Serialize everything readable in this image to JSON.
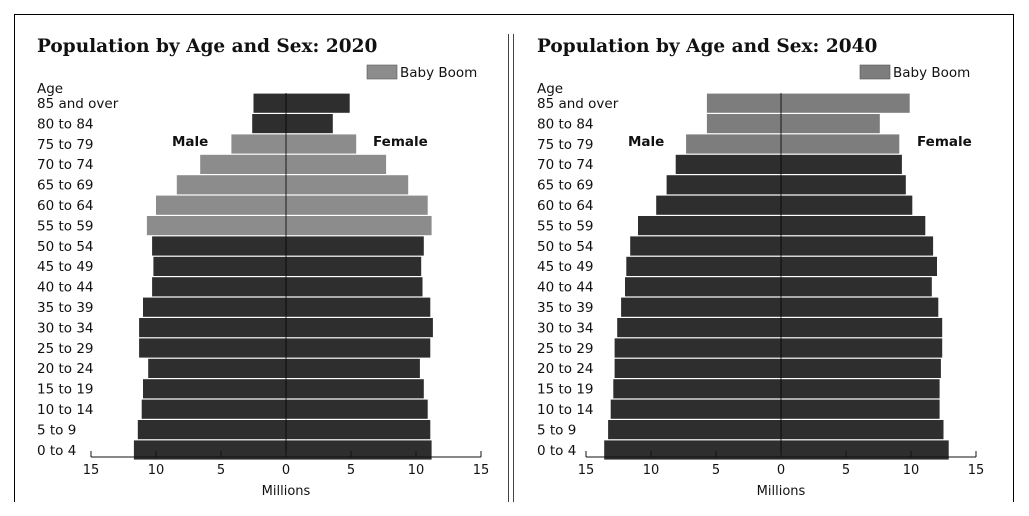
{
  "colors": {
    "cohort": "#2e2e2e",
    "baby_boom_2020": "#8c8c8c",
    "baby_boom_2040": "#7d7d7d",
    "axis": "#111111"
  },
  "chart_data": [
    {
      "type": "bar",
      "orientation": "horizontal-population-pyramid",
      "title": "Population by Age and Sex:  2020",
      "y_axis_title": "Age",
      "xlabel": "Millions",
      "xlim": [
        -15,
        15
      ],
      "tick_values": [
        -15,
        -10,
        -5,
        0,
        5,
        10,
        15
      ],
      "tick_labels": [
        "15",
        "10",
        "5",
        "0",
        "5",
        "10",
        "15"
      ],
      "legend": {
        "label": "Baby Boom",
        "position": "top-right"
      },
      "sex_labels": {
        "male": "Male",
        "female": "Female"
      },
      "categories": [
        "85 and over",
        "80 to 84",
        "75 to 79",
        "70 to 74",
        "65 to 69",
        "60 to 64",
        "55 to 59",
        "50 to 54",
        "45 to 49",
        "40 to 44",
        "35 to 39",
        "30 to 34",
        "25 to 29",
        "20 to 24",
        "15 to 19",
        "10 to 14",
        "5 to 9",
        "0 to 4"
      ],
      "baby_boom_categories": [
        "75 to 79",
        "70 to 74",
        "65 to 69",
        "60 to 64",
        "55 to 59"
      ],
      "series": [
        {
          "name": "Male",
          "values": [
            2.5,
            2.6,
            4.2,
            6.6,
            8.4,
            10.0,
            10.7,
            10.3,
            10.2,
            10.3,
            11.0,
            11.3,
            11.3,
            10.6,
            11.0,
            11.1,
            11.4,
            11.7
          ]
        },
        {
          "name": "Female",
          "values": [
            4.9,
            3.6,
            5.4,
            7.7,
            9.4,
            10.9,
            11.2,
            10.6,
            10.4,
            10.5,
            11.1,
            11.3,
            11.1,
            10.3,
            10.6,
            10.9,
            11.1,
            11.2
          ]
        }
      ]
    },
    {
      "type": "bar",
      "orientation": "horizontal-population-pyramid",
      "title": "Population by Age and Sex:  2040",
      "y_axis_title": "Age",
      "xlabel": "Millions",
      "xlim": [
        -15,
        15
      ],
      "tick_values": [
        -15,
        -10,
        -5,
        0,
        5,
        10,
        15
      ],
      "tick_labels": [
        "15",
        "10",
        "5",
        "0",
        "5",
        "10",
        "15"
      ],
      "legend": {
        "label": "Baby Boom",
        "position": "top-right"
      },
      "sex_labels": {
        "male": "Male",
        "female": "Female"
      },
      "categories": [
        "85 and over",
        "80 to 84",
        "75 to 79",
        "70 to 74",
        "65 to 69",
        "60 to 64",
        "55 to 59",
        "50 to 54",
        "45 to 49",
        "40 to 44",
        "35 to 39",
        "30 to 34",
        "25 to 29",
        "20 to 24",
        "15 to 19",
        "10 to 14",
        "5 to 9",
        "0 to 4"
      ],
      "baby_boom_categories": [
        "85 and over",
        "80 to 84",
        "75 to 79"
      ],
      "series": [
        {
          "name": "Male",
          "values": [
            5.7,
            5.7,
            7.3,
            8.1,
            8.8,
            9.6,
            11.0,
            11.6,
            11.9,
            12.0,
            12.3,
            12.6,
            12.8,
            12.8,
            12.9,
            13.1,
            13.3,
            13.6
          ]
        },
        {
          "name": "Female",
          "values": [
            9.9,
            7.6,
            9.1,
            9.3,
            9.6,
            10.1,
            11.1,
            11.7,
            12.0,
            11.6,
            12.1,
            12.4,
            12.4,
            12.3,
            12.2,
            12.2,
            12.5,
            12.9
          ]
        }
      ]
    }
  ]
}
